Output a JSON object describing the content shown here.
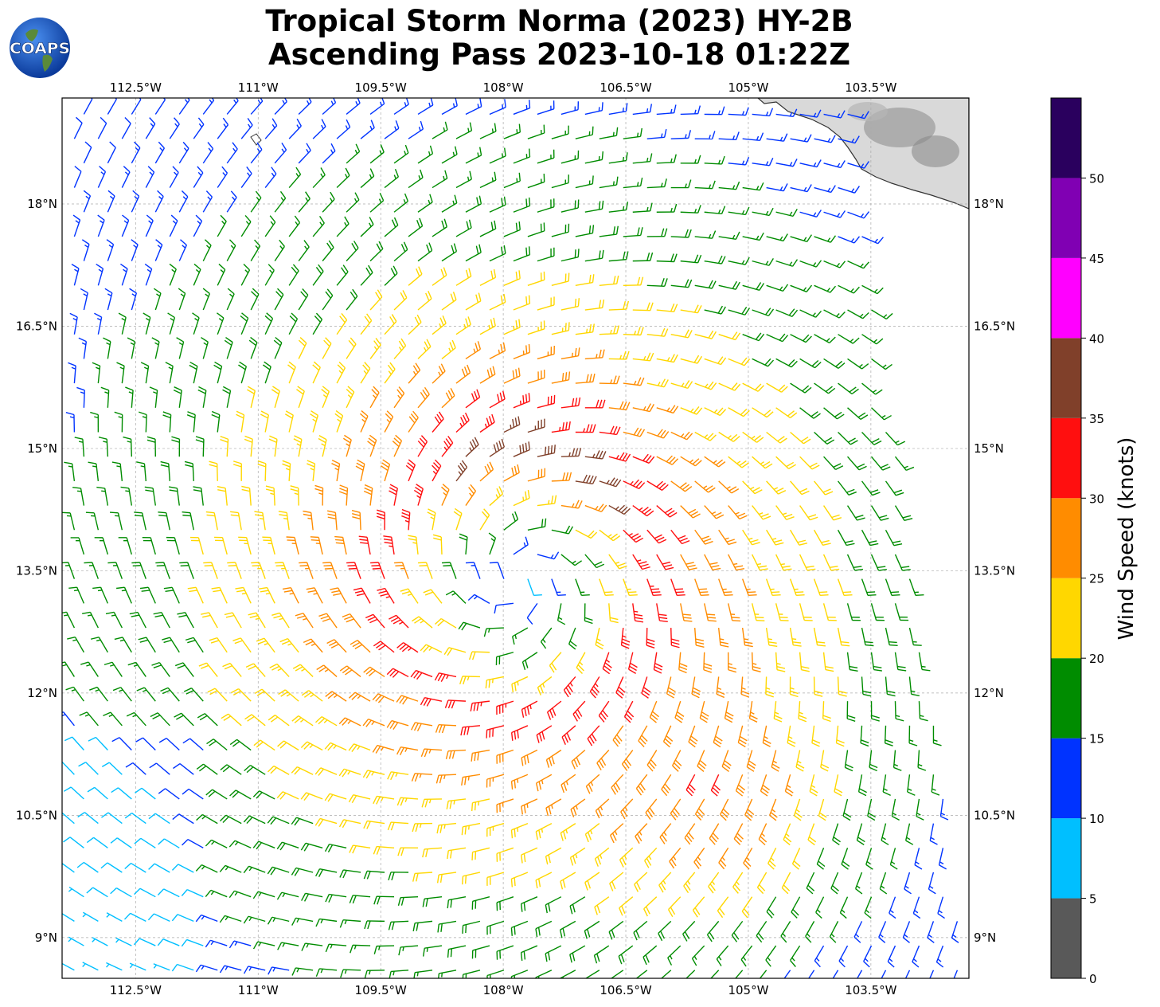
{
  "title": {
    "line1": "Tropical Storm Norma (2023) HY-2B",
    "line2": "Ascending Pass 2023-10-18 01:22Z"
  },
  "logo": {
    "text": "COAPS",
    "icon": "globe-icon"
  },
  "map": {
    "lon_range": [
      -113.4,
      -102.3
    ],
    "lat_range": [
      8.5,
      19.3
    ],
    "lon_ticks": [
      {
        "value": -112.5,
        "label": "112.5°W"
      },
      {
        "value": -111.0,
        "label": "111°W"
      },
      {
        "value": -109.5,
        "label": "109.5°W"
      },
      {
        "value": -108.0,
        "label": "108°W"
      },
      {
        "value": -106.5,
        "label": "106.5°W"
      },
      {
        "value": -105.0,
        "label": "105°W"
      },
      {
        "value": -103.5,
        "label": "103.5°W"
      }
    ],
    "lat_ticks": [
      {
        "value": 18.0,
        "label": "18°N"
      },
      {
        "value": 16.5,
        "label": "16.5°N"
      },
      {
        "value": 15.0,
        "label": "15°N"
      },
      {
        "value": 13.5,
        "label": "13.5°N"
      },
      {
        "value": 12.0,
        "label": "12°N"
      },
      {
        "value": 10.5,
        "label": "10.5°N"
      },
      {
        "value": 9.0,
        "label": "9°N"
      }
    ],
    "gridlines": true,
    "storm_center": {
      "lon": -107.8,
      "lat": 13.4
    },
    "secondary_max": {
      "lon": -105.2,
      "lat": 10.7
    },
    "land": "mexico-coast-top-right"
  },
  "colorbar": {
    "label": "Wind Speed (knots)",
    "range": [
      0,
      55
    ],
    "ticks": [
      "0",
      "5",
      "10",
      "15",
      "20",
      "25",
      "30",
      "35",
      "40",
      "45",
      "50"
    ],
    "bins": [
      {
        "min": 0,
        "max": 5,
        "color": "#595959"
      },
      {
        "min": 5,
        "max": 10,
        "color": "#00bfff"
      },
      {
        "min": 10,
        "max": 15,
        "color": "#0033ff"
      },
      {
        "min": 15,
        "max": 20,
        "color": "#008c00"
      },
      {
        "min": 20,
        "max": 25,
        "color": "#ffd700"
      },
      {
        "min": 25,
        "max": 30,
        "color": "#ff8c00"
      },
      {
        "min": 30,
        "max": 35,
        "color": "#ff0f0f"
      },
      {
        "min": 35,
        "max": 40,
        "color": "#80402a"
      },
      {
        "min": 40,
        "max": 45,
        "color": "#ff00ff"
      },
      {
        "min": 45,
        "max": 50,
        "color": "#8000b3"
      },
      {
        "min": 50,
        "max": 55,
        "color": "#2a005e"
      }
    ]
  }
}
